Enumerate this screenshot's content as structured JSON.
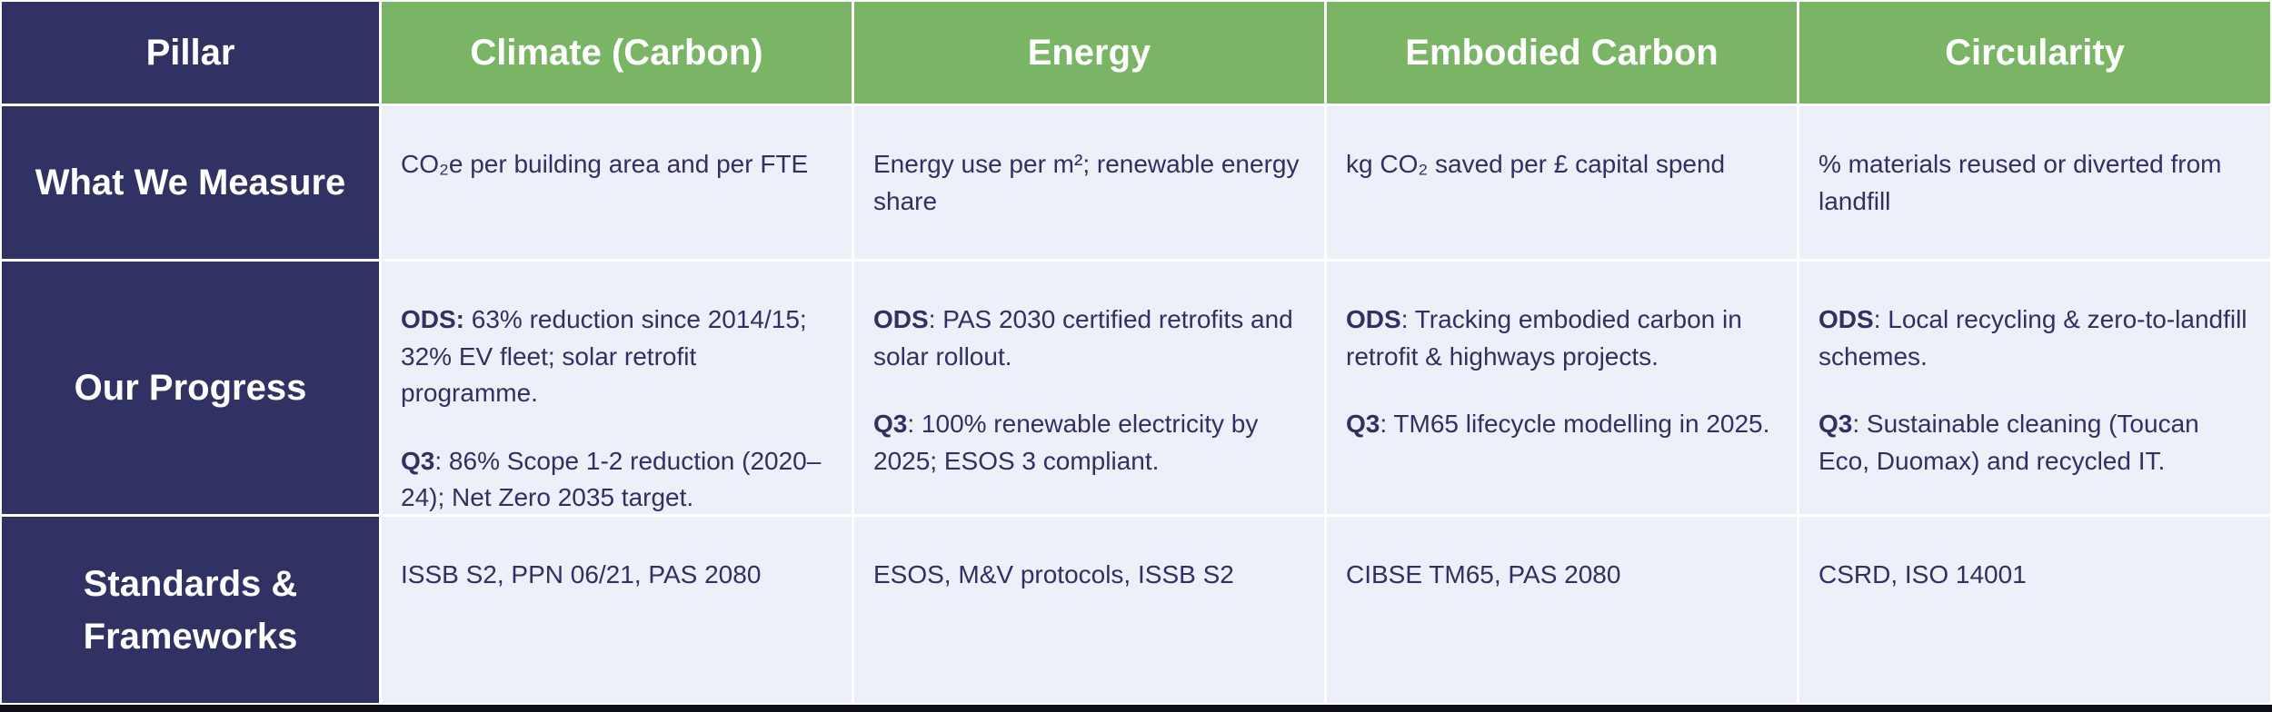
{
  "table": {
    "corner_header": "Pillar",
    "row_headers": {
      "measure": "What We Measure",
      "progress": "Our Progress",
      "standards": "Standards & Frameworks"
    },
    "columns": [
      {
        "header": "Climate (Carbon)",
        "measure": "CO₂e per building area and per FTE",
        "progress": [
          {
            "bold": "ODS:",
            "text": " 63% reduction since 2014/15; 32% EV fleet; solar retrofit programme."
          },
          {
            "bold": "Q3",
            "text": ": 86% Scope 1-2 reduction (2020–24); Net Zero 2035 target."
          }
        ],
        "standards": "ISSB S2, PPN 06/21, PAS 2080"
      },
      {
        "header": "Energy",
        "measure": "Energy use per m²; renewable energy share",
        "progress": [
          {
            "bold": "ODS",
            "text": ": PAS 2030 certified retrofits and solar rollout."
          },
          {
            "bold": "Q3",
            "text": ": 100% renewable electricity by 2025; ESOS 3 compliant."
          }
        ],
        "standards": "ESOS, M&V protocols, ISSB S2"
      },
      {
        "header": "Embodied Carbon",
        "measure": "kg CO₂ saved per £ capital spend",
        "progress": [
          {
            "bold": "ODS",
            "text": ": Tracking embodied carbon in retrofit & highways projects."
          },
          {
            "bold": "Q3",
            "text": ": TM65 lifecycle modelling in 2025."
          }
        ],
        "standards": "CIBSE TM65, PAS 2080"
      },
      {
        "header": "Circularity",
        "measure": "% materials reused or diverted from landfill",
        "progress": [
          {
            "bold": "ODS",
            "text": ": Local recycling & zero-to-landfill schemes."
          },
          {
            "bold": "Q3",
            "text": ": Sustainable cleaning (Toucan Eco, Duomax) and recycled IT."
          }
        ],
        "standards": "CSRD, ISO 14001"
      }
    ]
  },
  "colors": {
    "header_navy": "#2F3262",
    "header_green": "#7AB566",
    "cell_background": "#EDF0F9",
    "body_text": "#2E3161",
    "bottom_bar": "#0E0E16"
  }
}
